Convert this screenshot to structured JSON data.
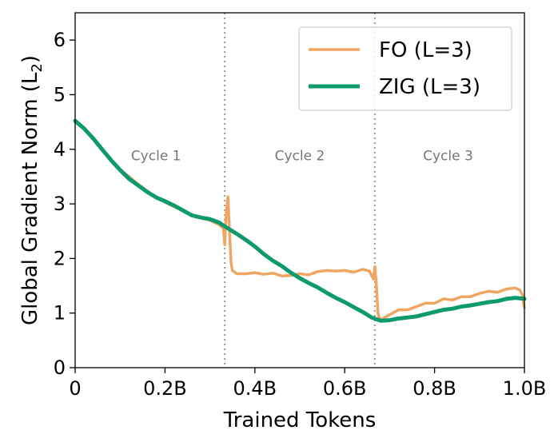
{
  "chart_data": {
    "type": "line",
    "title": "",
    "xlabel": "Trained Tokens",
    "ylabel": "Global Gradient Norm (L",
    "ylabel_subscript": "2",
    "ylabel_close": ")",
    "xlim": [
      0,
      1.0
    ],
    "ylim": [
      0,
      6.5
    ],
    "x_ticks": [
      {
        "value": 0,
        "label": "0"
      },
      {
        "value": 0.2,
        "label": "0.2B"
      },
      {
        "value": 0.4,
        "label": "0.4B"
      },
      {
        "value": 0.6,
        "label": "0.6B"
      },
      {
        "value": 0.8,
        "label": "0.8B"
      },
      {
        "value": 1.0,
        "label": "1.0B"
      }
    ],
    "y_ticks": [
      {
        "value": 0,
        "label": "0"
      },
      {
        "value": 1,
        "label": "1"
      },
      {
        "value": 2,
        "label": "2"
      },
      {
        "value": 3,
        "label": "3"
      },
      {
        "value": 4,
        "label": "4"
      },
      {
        "value": 5,
        "label": "5"
      },
      {
        "value": 6,
        "label": "6"
      }
    ],
    "grid": false,
    "legend_position": "top-right",
    "cycle_boundaries": [
      0.333,
      0.667
    ],
    "cycle_labels": [
      {
        "label": "Cycle 1",
        "x": 0.18,
        "y": 3.8
      },
      {
        "label": "Cycle 2",
        "x": 0.5,
        "y": 3.8
      },
      {
        "label": "Cycle 3",
        "x": 0.83,
        "y": 3.8
      }
    ],
    "series": [
      {
        "name": "FO (L=3)",
        "color": "#f0a562",
        "points": [
          [
            0.0,
            4.5
          ],
          [
            0.02,
            4.38
          ],
          [
            0.04,
            4.18
          ],
          [
            0.06,
            3.98
          ],
          [
            0.08,
            3.8
          ],
          [
            0.1,
            3.62
          ],
          [
            0.12,
            3.5
          ],
          [
            0.14,
            3.36
          ],
          [
            0.16,
            3.24
          ],
          [
            0.18,
            3.12
          ],
          [
            0.2,
            3.03
          ],
          [
            0.22,
            2.95
          ],
          [
            0.24,
            2.88
          ],
          [
            0.26,
            2.8
          ],
          [
            0.28,
            2.75
          ],
          [
            0.3,
            2.7
          ],
          [
            0.32,
            2.62
          ],
          [
            0.33,
            2.55
          ],
          [
            0.333,
            2.25
          ],
          [
            0.336,
            2.8
          ],
          [
            0.34,
            3.13
          ],
          [
            0.343,
            2.6
          ],
          [
            0.347,
            1.92
          ],
          [
            0.35,
            1.78
          ],
          [
            0.36,
            1.72
          ],
          [
            0.38,
            1.72
          ],
          [
            0.4,
            1.74
          ],
          [
            0.42,
            1.71
          ],
          [
            0.44,
            1.73
          ],
          [
            0.46,
            1.68
          ],
          [
            0.48,
            1.69
          ],
          [
            0.5,
            1.72
          ],
          [
            0.52,
            1.7
          ],
          [
            0.54,
            1.76
          ],
          [
            0.56,
            1.78
          ],
          [
            0.58,
            1.77
          ],
          [
            0.6,
            1.78
          ],
          [
            0.62,
            1.75
          ],
          [
            0.64,
            1.8
          ],
          [
            0.655,
            1.77
          ],
          [
            0.664,
            1.62
          ],
          [
            0.667,
            1.85
          ],
          [
            0.67,
            1.58
          ],
          [
            0.674,
            1.0
          ],
          [
            0.678,
            0.88
          ],
          [
            0.685,
            0.9
          ],
          [
            0.7,
            0.97
          ],
          [
            0.72,
            1.06
          ],
          [
            0.74,
            1.06
          ],
          [
            0.76,
            1.12
          ],
          [
            0.78,
            1.18
          ],
          [
            0.8,
            1.18
          ],
          [
            0.82,
            1.26
          ],
          [
            0.84,
            1.24
          ],
          [
            0.86,
            1.3
          ],
          [
            0.88,
            1.3
          ],
          [
            0.9,
            1.36
          ],
          [
            0.92,
            1.4
          ],
          [
            0.94,
            1.38
          ],
          [
            0.96,
            1.44
          ],
          [
            0.98,
            1.46
          ],
          [
            0.99,
            1.42
          ],
          [
            0.995,
            1.34
          ],
          [
            1.0,
            1.1
          ]
        ]
      },
      {
        "name": "ZIG (L=3)",
        "color": "#0f9a6e",
        "points": [
          [
            0.0,
            4.52
          ],
          [
            0.02,
            4.38
          ],
          [
            0.04,
            4.2
          ],
          [
            0.06,
            4.0
          ],
          [
            0.08,
            3.8
          ],
          [
            0.1,
            3.62
          ],
          [
            0.12,
            3.46
          ],
          [
            0.14,
            3.34
          ],
          [
            0.16,
            3.22
          ],
          [
            0.18,
            3.12
          ],
          [
            0.2,
            3.05
          ],
          [
            0.22,
            2.97
          ],
          [
            0.24,
            2.88
          ],
          [
            0.26,
            2.79
          ],
          [
            0.28,
            2.75
          ],
          [
            0.3,
            2.72
          ],
          [
            0.32,
            2.66
          ],
          [
            0.34,
            2.55
          ],
          [
            0.36,
            2.45
          ],
          [
            0.38,
            2.34
          ],
          [
            0.4,
            2.22
          ],
          [
            0.42,
            2.08
          ],
          [
            0.44,
            1.96
          ],
          [
            0.46,
            1.86
          ],
          [
            0.48,
            1.74
          ],
          [
            0.5,
            1.64
          ],
          [
            0.52,
            1.55
          ],
          [
            0.54,
            1.47
          ],
          [
            0.56,
            1.37
          ],
          [
            0.58,
            1.28
          ],
          [
            0.6,
            1.2
          ],
          [
            0.62,
            1.11
          ],
          [
            0.64,
            1.02
          ],
          [
            0.66,
            0.92
          ],
          [
            0.68,
            0.86
          ],
          [
            0.7,
            0.87
          ],
          [
            0.72,
            0.9
          ],
          [
            0.74,
            0.92
          ],
          [
            0.76,
            0.94
          ],
          [
            0.78,
            0.98
          ],
          [
            0.8,
            1.02
          ],
          [
            0.82,
            1.06
          ],
          [
            0.84,
            1.08
          ],
          [
            0.86,
            1.12
          ],
          [
            0.88,
            1.14
          ],
          [
            0.9,
            1.17
          ],
          [
            0.92,
            1.2
          ],
          [
            0.94,
            1.22
          ],
          [
            0.96,
            1.26
          ],
          [
            0.98,
            1.28
          ],
          [
            1.0,
            1.26
          ]
        ]
      }
    ]
  }
}
